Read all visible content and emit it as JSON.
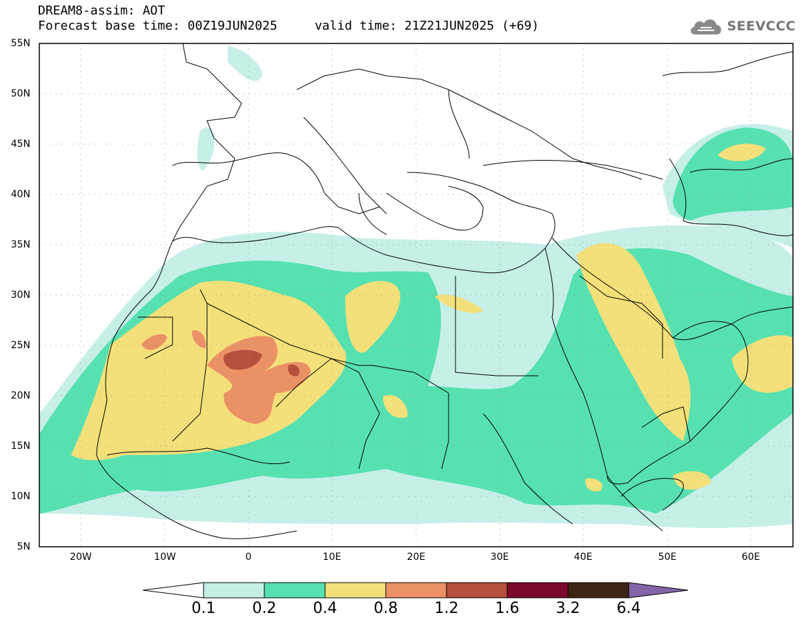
{
  "header": {
    "line1": "DREAM8-assim: AOT",
    "base_label": "Forecast base time: 00Z19JUN2025",
    "valid_label": "valid time: 21Z21JUN2025 (+69)"
  },
  "brand": {
    "name": "SEEVCCC",
    "icon": "cloud-logo-icon"
  },
  "map": {
    "lat_labels": [
      "55N",
      "50N",
      "45N",
      "40N",
      "35N",
      "30N",
      "25N",
      "20N",
      "15N",
      "10N",
      "5N"
    ],
    "lon_labels": [
      "20W",
      "10W",
      "0",
      "10E",
      "20E",
      "30E",
      "40E",
      "50E",
      "60E"
    ],
    "lat_range": [
      5,
      55
    ],
    "lon_range": [
      -25,
      65
    ],
    "grid": "dotted"
  },
  "colorbar": {
    "labels": [
      "0.1",
      "0.2",
      "0.4",
      "0.8",
      "1.2",
      "1.6",
      "3.2",
      "6.4"
    ],
    "colors": {
      "low": "#ffffff",
      "c1": "#c6efe8",
      "c2": "#57e0b0",
      "c3": "#f4e07a",
      "c4": "#eb9166",
      "c5": "#b4503c",
      "c6": "#7b0a2a",
      "c7": "#3e2614",
      "high": "#8464a8"
    }
  }
}
